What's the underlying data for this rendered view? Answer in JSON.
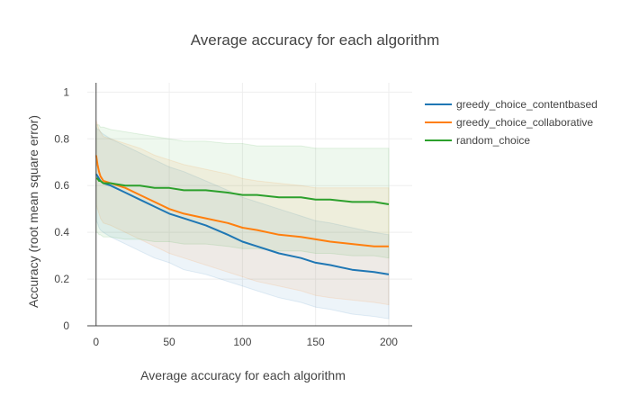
{
  "chart_data": {
    "type": "line",
    "title": "Average accuracy for each algorithm",
    "xlabel": "Average accuracy for each algorithm",
    "ylabel": "Accuracy (root mean square error)",
    "xlim": [
      -6,
      216
    ],
    "ylim": [
      0,
      1.04
    ],
    "xticks": [
      0,
      50,
      100,
      150,
      200
    ],
    "yticks": [
      0,
      0.2,
      0.4,
      0.6,
      0.8,
      1
    ],
    "ytick_labels": [
      "0",
      "0.2",
      "0.4",
      "0.6",
      "0.8",
      "1"
    ],
    "grid": true,
    "legend_position": "top-right",
    "x": [
      0,
      1,
      2,
      3,
      5,
      10,
      20,
      30,
      40,
      50,
      60,
      75,
      90,
      100,
      110,
      125,
      140,
      150,
      160,
      175,
      190,
      200
    ],
    "series": [
      {
        "name": "greedy_choice_contentbased",
        "color": "#1f77b4",
        "values": [
          0.65,
          0.64,
          0.63,
          0.62,
          0.61,
          0.6,
          0.57,
          0.54,
          0.51,
          0.48,
          0.46,
          0.43,
          0.39,
          0.36,
          0.34,
          0.31,
          0.29,
          0.27,
          0.26,
          0.24,
          0.23,
          0.22
        ],
        "band_upper": [
          0.85,
          0.84,
          0.84,
          0.83,
          0.82,
          0.8,
          0.77,
          0.74,
          0.71,
          0.68,
          0.66,
          0.62,
          0.58,
          0.55,
          0.53,
          0.5,
          0.47,
          0.45,
          0.44,
          0.42,
          0.4,
          0.39
        ],
        "band_lower": [
          0.45,
          0.44,
          0.42,
          0.41,
          0.4,
          0.38,
          0.35,
          0.32,
          0.29,
          0.27,
          0.24,
          0.22,
          0.19,
          0.17,
          0.15,
          0.12,
          0.1,
          0.08,
          0.07,
          0.05,
          0.04,
          0.03
        ]
      },
      {
        "name": "greedy_choice_collaborative",
        "color": "#ff7f0e",
        "values": [
          0.73,
          0.69,
          0.66,
          0.64,
          0.62,
          0.61,
          0.59,
          0.56,
          0.53,
          0.5,
          0.48,
          0.46,
          0.44,
          0.42,
          0.41,
          0.39,
          0.38,
          0.37,
          0.36,
          0.35,
          0.34,
          0.34
        ],
        "band_upper": [
          0.88,
          0.86,
          0.84,
          0.83,
          0.81,
          0.8,
          0.78,
          0.76,
          0.73,
          0.71,
          0.69,
          0.67,
          0.65,
          0.63,
          0.62,
          0.61,
          0.6,
          0.59,
          0.59,
          0.59,
          0.59,
          0.59
        ],
        "band_lower": [
          0.52,
          0.5,
          0.48,
          0.46,
          0.44,
          0.43,
          0.4,
          0.37,
          0.34,
          0.31,
          0.29,
          0.26,
          0.23,
          0.21,
          0.19,
          0.17,
          0.15,
          0.13,
          0.12,
          0.11,
          0.1,
          0.09
        ]
      },
      {
        "name": "random_choice",
        "color": "#2ca02c",
        "values": [
          0.63,
          0.63,
          0.62,
          0.62,
          0.61,
          0.61,
          0.6,
          0.6,
          0.59,
          0.59,
          0.58,
          0.58,
          0.57,
          0.56,
          0.56,
          0.55,
          0.55,
          0.54,
          0.54,
          0.53,
          0.53,
          0.52
        ],
        "band_upper": [
          0.86,
          0.86,
          0.86,
          0.85,
          0.85,
          0.84,
          0.83,
          0.82,
          0.81,
          0.8,
          0.79,
          0.79,
          0.78,
          0.78,
          0.77,
          0.77,
          0.77,
          0.76,
          0.76,
          0.76,
          0.76,
          0.76
        ],
        "band_lower": [
          0.4,
          0.4,
          0.39,
          0.39,
          0.38,
          0.38,
          0.37,
          0.37,
          0.36,
          0.36,
          0.35,
          0.35,
          0.34,
          0.33,
          0.33,
          0.32,
          0.32,
          0.31,
          0.31,
          0.3,
          0.3,
          0.29
        ]
      }
    ]
  }
}
